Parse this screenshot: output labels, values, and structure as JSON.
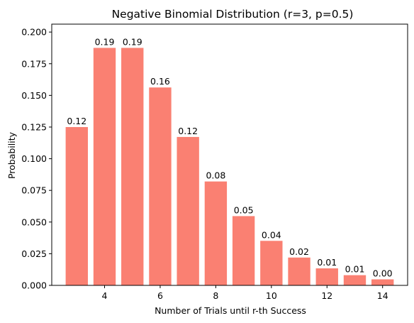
{
  "chart_data": {
    "type": "bar",
    "title": "Negative Binomial Distribution (r=3, p=0.5)",
    "xlabel": "Number of Trials until r-th Success",
    "ylabel": "Probability",
    "x": [
      3,
      4,
      5,
      6,
      7,
      8,
      9,
      10,
      11,
      12,
      13,
      14
    ],
    "values": [
      0.125,
      0.1875,
      0.1875,
      0.15625,
      0.1171875,
      0.08203125,
      0.0546875,
      0.03515625,
      0.02197266,
      0.01342773,
      0.00805664,
      0.00476074
    ],
    "data_labels": [
      "0.12",
      "0.19",
      "0.19",
      "0.16",
      "0.12",
      "0.08",
      "0.05",
      "0.04",
      "0.02",
      "0.01",
      "0.01",
      "0.00"
    ],
    "xlim": [
      2.1,
      14.9
    ],
    "ylim": [
      0,
      0.20625
    ],
    "x_ticks": [
      4,
      6,
      8,
      10,
      12,
      14
    ],
    "x_tick_labels": [
      "4",
      "6",
      "8",
      "10",
      "12",
      "14"
    ],
    "y_ticks": [
      0,
      0.025,
      0.05,
      0.075,
      0.1,
      0.125,
      0.15,
      0.175,
      0.2
    ],
    "y_tick_labels": [
      "0.000",
      "0.025",
      "0.050",
      "0.075",
      "0.100",
      "0.125",
      "0.150",
      "0.175",
      "0.200"
    ],
    "bar_color": "#fa8072",
    "grid": false
  }
}
